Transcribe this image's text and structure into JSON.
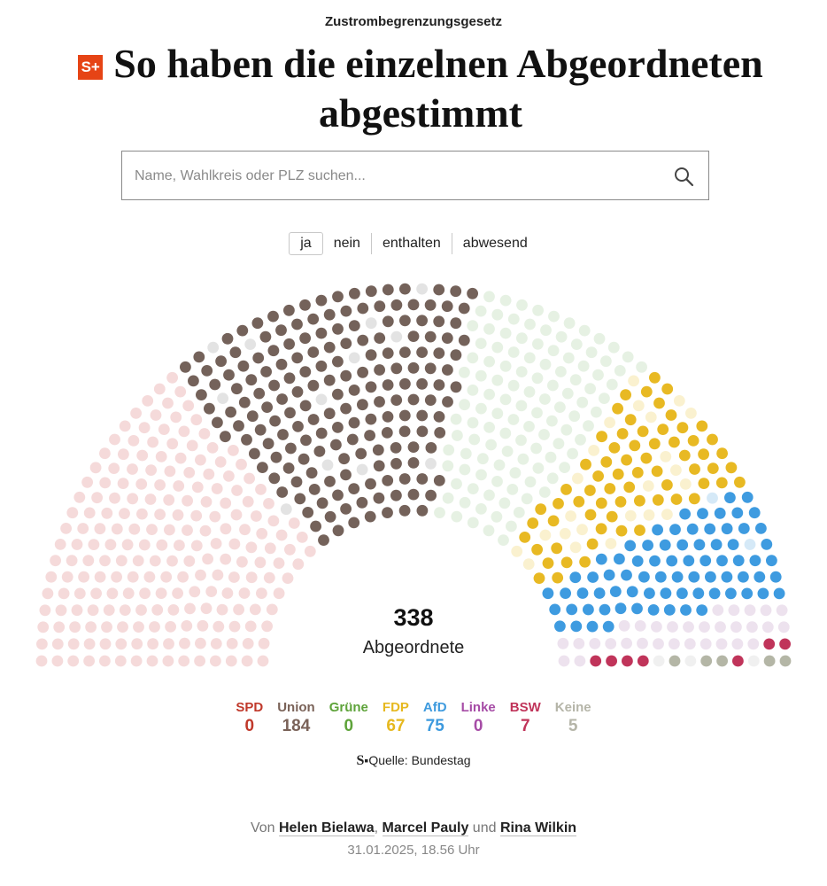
{
  "header": {
    "kicker": "Zustrombegrenzungsgesetz",
    "badge": "S+",
    "title": "So haben die einzelnen Abgeordneten abgestimmt"
  },
  "search": {
    "placeholder": "Name, Wahlkreis oder PLZ suchen..."
  },
  "filters": [
    {
      "label": "ja",
      "active": true
    },
    {
      "label": "nein",
      "active": false
    },
    {
      "label": "enthalten",
      "active": false
    },
    {
      "label": "abwesend",
      "active": false
    }
  ],
  "chart_data": {
    "type": "parliament",
    "selected_vote": "ja",
    "total": "338",
    "total_label": "Abgeordnete",
    "parties": [
      {
        "name": "SPD",
        "value": "0",
        "color": "#c0392b",
        "seat_color": "#f5dada",
        "yes_color": "#c0392b"
      },
      {
        "name": "Union",
        "value": "184",
        "color": "#7a6258",
        "seat_color": "#e3e3e3",
        "yes_color": "#74625a"
      },
      {
        "name": "Grüne",
        "value": "0",
        "color": "#5ea33a",
        "seat_color": "#e6f1e3",
        "yes_color": "#5ea33a"
      },
      {
        "name": "FDP",
        "value": "67",
        "color": "#e6b81f",
        "seat_color": "#faf1cf",
        "yes_color": "#e8b923"
      },
      {
        "name": "AfD",
        "value": "75",
        "color": "#3d9ade",
        "seat_color": "#d5e9f7",
        "yes_color": "#3e9be0"
      },
      {
        "name": "Linke",
        "value": "0",
        "color": "#a64ca6",
        "seat_color": "#ede2ee",
        "yes_color": "#a64ca6"
      },
      {
        "name": "BSW",
        "value": "7",
        "color": "#c0345a",
        "seat_color": "#ede2ee",
        "yes_color": "#c0345a"
      },
      {
        "name": "Keine",
        "value": "5",
        "color": "#b5b5a8",
        "seat_color": "#f0f0f0",
        "yes_color": "#b4b6a6"
      }
    ],
    "seats_total": 733,
    "segments_clockwise": [
      {
        "party": "SPD",
        "seats": 207,
        "yes": 0
      },
      {
        "party": "Union",
        "seats": 196,
        "yes": 184
      },
      {
        "party": "Grüne",
        "seats": 117,
        "yes": 0
      },
      {
        "party": "FDP",
        "seats": 90,
        "yes": 67
      },
      {
        "party": "AfD",
        "seats": 77,
        "yes": 75
      },
      {
        "party": "Linke",
        "seats": 28,
        "yes": 0
      },
      {
        "party": "BSW",
        "seats": 10,
        "yes": 7
      },
      {
        "party": "Keine",
        "seats": 8,
        "yes": 5
      }
    ]
  },
  "source": {
    "logo": "S",
    "text": "Quelle: Bundestag"
  },
  "byline": {
    "prefix": "Von",
    "authors": [
      "Helen Bielawa",
      "Marcel Pauly",
      "Rina Wilkin"
    ],
    "sep1": ",",
    "sep2": "und",
    "date": "31.01.2025, 18.56 Uhr"
  }
}
